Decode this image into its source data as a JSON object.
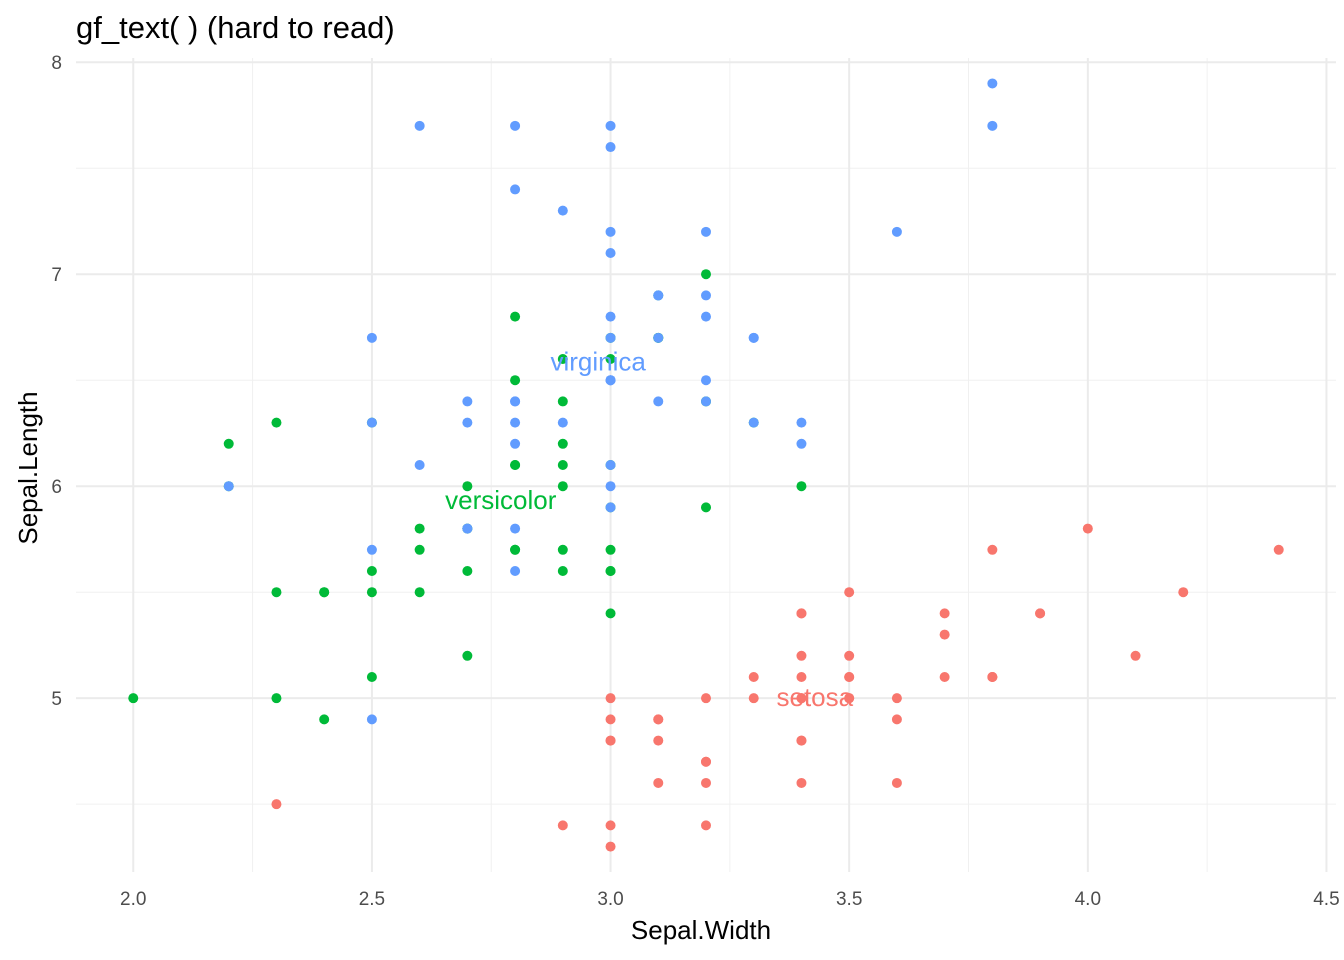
{
  "chart_data": {
    "type": "scatter",
    "title": "gf_text( ) (hard to read)",
    "xlabel": "Sepal.Width",
    "ylabel": "Sepal.Length",
    "xlim": [
      1.88,
      4.52
    ],
    "ylim": [
      4.18,
      8.02
    ],
    "xticks": [
      2.0,
      2.5,
      3.0,
      3.5,
      4.0,
      4.5
    ],
    "xtick_labels": [
      "2.0",
      "2.5",
      "3.0",
      "3.5",
      "4.0",
      "4.5"
    ],
    "yticks": [
      5,
      6,
      7,
      8
    ],
    "ytick_labels": [
      "5",
      "6",
      "7",
      "8"
    ],
    "grid": true,
    "legend": "none",
    "series": [
      {
        "name": "setosa",
        "color": "#F8766D",
        "points": [
          [
            3.5,
            5.1
          ],
          [
            3.0,
            4.9
          ],
          [
            3.2,
            4.7
          ],
          [
            3.1,
            4.6
          ],
          [
            3.6,
            5.0
          ],
          [
            3.9,
            5.4
          ],
          [
            3.4,
            4.6
          ],
          [
            3.4,
            5.0
          ],
          [
            2.9,
            4.4
          ],
          [
            3.1,
            4.9
          ],
          [
            3.7,
            5.4
          ],
          [
            3.4,
            4.8
          ],
          [
            3.0,
            4.8
          ],
          [
            3.0,
            4.3
          ],
          [
            4.0,
            5.8
          ],
          [
            4.4,
            5.7
          ],
          [
            3.9,
            5.4
          ],
          [
            3.5,
            5.1
          ],
          [
            3.8,
            5.7
          ],
          [
            3.8,
            5.1
          ],
          [
            3.4,
            5.4
          ],
          [
            3.7,
            5.1
          ],
          [
            3.6,
            4.6
          ],
          [
            3.3,
            5.1
          ],
          [
            3.4,
            4.8
          ],
          [
            3.0,
            5.0
          ],
          [
            3.4,
            5.0
          ],
          [
            3.5,
            5.2
          ],
          [
            3.4,
            5.2
          ],
          [
            3.2,
            4.7
          ],
          [
            3.1,
            4.8
          ],
          [
            3.4,
            5.4
          ],
          [
            4.1,
            5.2
          ],
          [
            4.2,
            5.5
          ],
          [
            3.1,
            4.9
          ],
          [
            3.2,
            5.0
          ],
          [
            3.5,
            5.5
          ],
          [
            3.6,
            4.9
          ],
          [
            3.0,
            4.4
          ],
          [
            3.4,
            5.1
          ],
          [
            3.5,
            5.0
          ],
          [
            2.3,
            4.5
          ],
          [
            3.2,
            4.4
          ],
          [
            3.5,
            5.0
          ],
          [
            3.8,
            5.1
          ],
          [
            3.0,
            4.8
          ],
          [
            3.8,
            5.1
          ],
          [
            3.2,
            4.6
          ],
          [
            3.7,
            5.3
          ],
          [
            3.3,
            5.0
          ]
        ],
        "label": {
          "text": "setosa",
          "x": 3.428,
          "y": 5.006
        }
      },
      {
        "name": "versicolor",
        "color": "#00BA38",
        "points": [
          [
            3.2,
            7.0
          ],
          [
            3.2,
            6.4
          ],
          [
            3.1,
            6.9
          ],
          [
            2.3,
            5.5
          ],
          [
            2.8,
            6.5
          ],
          [
            2.8,
            5.7
          ],
          [
            3.3,
            6.3
          ],
          [
            2.4,
            4.9
          ],
          [
            2.9,
            6.6
          ],
          [
            2.7,
            5.2
          ],
          [
            2.0,
            5.0
          ],
          [
            3.0,
            5.9
          ],
          [
            2.2,
            6.0
          ],
          [
            2.9,
            6.1
          ],
          [
            2.9,
            5.6
          ],
          [
            3.1,
            6.7
          ],
          [
            3.0,
            5.6
          ],
          [
            2.7,
            5.8
          ],
          [
            2.2,
            6.2
          ],
          [
            2.5,
            5.6
          ],
          [
            3.2,
            5.9
          ],
          [
            2.8,
            6.1
          ],
          [
            2.5,
            6.3
          ],
          [
            2.8,
            6.1
          ],
          [
            2.9,
            6.4
          ],
          [
            3.0,
            6.6
          ],
          [
            2.8,
            6.8
          ],
          [
            3.0,
            6.7
          ],
          [
            2.9,
            6.0
          ],
          [
            2.6,
            5.7
          ],
          [
            2.4,
            5.5
          ],
          [
            2.4,
            5.5
          ],
          [
            2.7,
            5.8
          ],
          [
            2.7,
            6.0
          ],
          [
            3.0,
            5.4
          ],
          [
            3.4,
            6.0
          ],
          [
            3.1,
            6.7
          ],
          [
            2.3,
            6.3
          ],
          [
            3.0,
            5.6
          ],
          [
            2.5,
            5.5
          ],
          [
            2.6,
            5.5
          ],
          [
            3.0,
            6.1
          ],
          [
            2.6,
            5.8
          ],
          [
            2.3,
            5.0
          ],
          [
            2.7,
            5.6
          ],
          [
            3.0,
            5.7
          ],
          [
            2.9,
            5.7
          ],
          [
            2.9,
            6.2
          ],
          [
            2.5,
            5.1
          ],
          [
            2.8,
            5.7
          ]
        ],
        "label": {
          "text": "versicolor",
          "x": 2.77,
          "y": 5.936
        }
      },
      {
        "name": "virginica",
        "color": "#619CFF",
        "points": [
          [
            3.3,
            6.3
          ],
          [
            2.7,
            5.8
          ],
          [
            3.0,
            7.1
          ],
          [
            2.9,
            6.3
          ],
          [
            3.0,
            6.5
          ],
          [
            3.0,
            7.6
          ],
          [
            2.5,
            4.9
          ],
          [
            2.9,
            7.3
          ],
          [
            2.5,
            6.7
          ],
          [
            3.6,
            7.2
          ],
          [
            3.2,
            6.5
          ],
          [
            2.7,
            6.4
          ],
          [
            3.0,
            6.8
          ],
          [
            2.5,
            5.7
          ],
          [
            2.8,
            5.8
          ],
          [
            3.2,
            6.4
          ],
          [
            3.0,
            6.5
          ],
          [
            3.8,
            7.7
          ],
          [
            2.6,
            7.7
          ],
          [
            2.2,
            6.0
          ],
          [
            3.2,
            6.9
          ],
          [
            2.8,
            5.6
          ],
          [
            2.8,
            7.7
          ],
          [
            2.7,
            6.3
          ],
          [
            3.3,
            6.7
          ],
          [
            3.2,
            7.2
          ],
          [
            2.8,
            6.2
          ],
          [
            3.0,
            6.1
          ],
          [
            2.8,
            6.4
          ],
          [
            3.0,
            7.2
          ],
          [
            2.8,
            7.4
          ],
          [
            3.8,
            7.9
          ],
          [
            2.8,
            6.4
          ],
          [
            2.8,
            6.3
          ],
          [
            2.6,
            6.1
          ],
          [
            3.0,
            7.7
          ],
          [
            3.4,
            6.3
          ],
          [
            3.1,
            6.4
          ],
          [
            3.0,
            6.0
          ],
          [
            3.1,
            6.9
          ],
          [
            3.1,
            6.7
          ],
          [
            3.1,
            6.9
          ],
          [
            2.7,
            5.8
          ],
          [
            3.2,
            6.8
          ],
          [
            3.3,
            6.7
          ],
          [
            3.0,
            6.7
          ],
          [
            2.5,
            6.3
          ],
          [
            3.0,
            6.5
          ],
          [
            3.4,
            6.2
          ],
          [
            3.0,
            5.9
          ]
        ],
        "label": {
          "text": "virginica",
          "x": 2.974,
          "y": 6.588
        }
      }
    ]
  }
}
